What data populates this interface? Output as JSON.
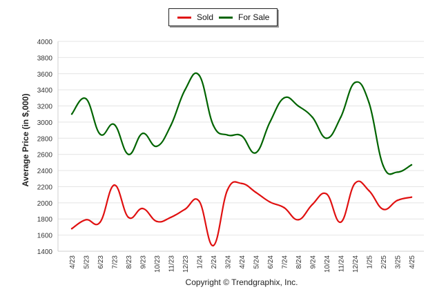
{
  "chart_data": {
    "type": "line",
    "title": "",
    "xlabel": "",
    "ylabel": "Average Price (in $,000)",
    "ylim": [
      1400,
      4000
    ],
    "yticks": [
      "1400",
      "1600",
      "1800",
      "2000",
      "2200",
      "2400",
      "2600",
      "2800",
      "3000",
      "3200",
      "3400",
      "3600",
      "3800",
      "4000"
    ],
    "grid": true,
    "legend": "top-center",
    "categories": [
      "4/23",
      "5/23",
      "6/23",
      "7/23",
      "8/23",
      "9/23",
      "10/23",
      "11/23",
      "12/23",
      "1/24",
      "2/24",
      "3/24",
      "4/24",
      "5/24",
      "6/24",
      "7/24",
      "8/24",
      "9/24",
      "10/24",
      "11/24",
      "12/24",
      "1/25",
      "2/25",
      "3/25",
      "4/25"
    ],
    "series": [
      {
        "name": "Sold",
        "color": "#e01010",
        "values": [
          1680,
          1790,
          1760,
          2220,
          1820,
          1930,
          1770,
          1820,
          1920,
          2020,
          1470,
          2160,
          2240,
          2130,
          2010,
          1940,
          1790,
          1980,
          2110,
          1760,
          2240,
          2150,
          1920,
          2030,
          2070
        ]
      },
      {
        "name": "For Sale",
        "color": "#006400",
        "values": [
          3100,
          3290,
          2850,
          2970,
          2600,
          2860,
          2700,
          2960,
          3400,
          3580,
          2960,
          2840,
          2830,
          2620,
          3000,
          3300,
          3200,
          3060,
          2800,
          3060,
          3490,
          3240,
          2460,
          2380,
          2470
        ]
      }
    ]
  },
  "copyright": "Copyright © Trendgraphix, Inc."
}
